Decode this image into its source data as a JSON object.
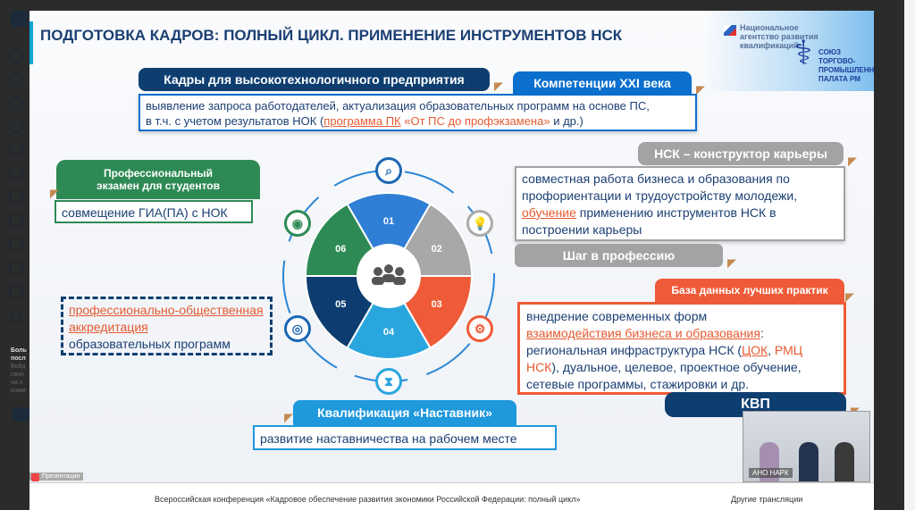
{
  "slide": {
    "title": "ПОДГОТОВКА КАДРОВ: ПОЛНЫЙ ЦИКЛ. ПРИМЕНЕНИЕ ИНСТРУМЕНТОВ НСК",
    "logo_nak": "Национальное агентство развития квалификаций",
    "logo_tpp": "СОЮЗ ТОРГОВО-ПРОМЫШЛЕННАЯ ПАЛАТА РМ",
    "tab_kadry": "Кадры для высокотехнологичного предприятия",
    "tab_komp": "Компетенции XXI века",
    "box_top": {
      "line1": "выявление запроса работодателей, актуализация образовательных программ на основе ПС,",
      "line2_a": "в т.ч. с учетом результатов НОК (",
      "line2_link": "программа ПК",
      "line2_quote": " «От ПС до профэкзамена»",
      "line2_end": " и  др.)"
    },
    "tab_exam": "Профессиональный экзамен для студентов",
    "box_exam": "совмещение  ГИА(ПА) с НОК",
    "box_accr": {
      "link": "профессионально-общественная аккредитация",
      "rest": "образовательных программ"
    },
    "tab_nsk": "НСК – конструктор карьеры",
    "box_nsk": {
      "a": "совместная работа бизнеса и образования по профориентации и трудоустройству молодежи,",
      "link": "обучение",
      "b": " применению инструментов НСК в построении карьеры"
    },
    "tab_shag": "Шаг в профессию",
    "tab_baza": "База данных лучших практик",
    "box_baza": {
      "a": "внедрение современных форм",
      "link": "взаимодействия бизнеса и образования",
      "b": ":",
      "c": "региональная инфраструктура НСК (",
      "cok": "ЦОК",
      ",": ", ",
      "rmc": "РМЦ НСК",
      "d": "), дуальное, целевое, проектное  обучение, сетевые программы, стажировки и др."
    },
    "tab_kvp": "КВП",
    "tab_nast": "Квалификация «Наставник»",
    "box_nast": "развитие наставничества на рабочем месте",
    "wheel": {
      "segments": [
        {
          "label": "01",
          "color": "#2f7fd6"
        },
        {
          "label": "02",
          "color": "#a8a8a8"
        },
        {
          "label": "03",
          "color": "#ef5b38"
        },
        {
          "label": "04",
          "color": "#2aa6df"
        },
        {
          "label": "05",
          "color": "#0d3c70"
        },
        {
          "label": "06",
          "color": "#2e8a55"
        }
      ],
      "icons": [
        "search-icon",
        "lightbulb-icon",
        "gears-icon",
        "hourglass-icon",
        "target-icon",
        "goal-icon"
      ]
    }
  },
  "video": {
    "label": "АНО НАРК"
  },
  "presentation_badge": "Презентация",
  "bottom": {
    "conference": "Всероссийская конференция «Кадровое обеспечение развития экономики Российской Федерации: полный цикл»",
    "other": "Другие трансляции"
  },
  "left_panel": {
    "title": "Боль посл",
    "text": "Войд свои на п комм"
  }
}
